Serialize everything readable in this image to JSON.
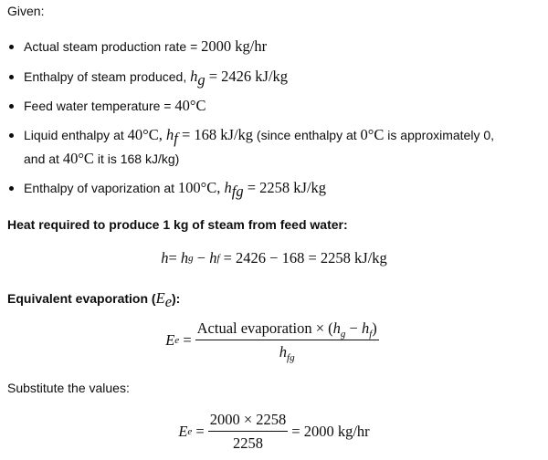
{
  "given_label": "Given:",
  "items": [
    {
      "text": "Actual steam production rate = ",
      "math": "2000 kg/hr"
    },
    {
      "text": "Enthalpy of steam produced, ",
      "var": "h",
      "sub": "g",
      "math": " = 2426 kJ/kg"
    },
    {
      "text": "Feed water temperature = ",
      "math": "40°C"
    },
    {
      "text": "Liquid enthalpy at ",
      "m1": "40°C, ",
      "var": "h",
      "sub": "f",
      "math": " = 168 kJ/kg",
      "rest": " (since enthalpy at ",
      "m2": "0°C",
      "rest2": " is approximately 0,",
      "line2a": "and at ",
      "line2m": "40°C",
      "line2b": " it is 168 kJ/kg)"
    },
    {
      "text": "Enthalpy of vaporization at ",
      "m1": "100°C, ",
      "var": "h",
      "sub": "fg",
      "math": " = 2258 kJ/kg"
    }
  ],
  "heat_heading": "Heat required to produce 1 kg of steam from feed water:",
  "heat_eq": {
    "h": "h",
    "eq1": " = ",
    "hg": "h",
    "g": "g",
    "minus": " − ",
    "hf": "h",
    "f": "f",
    "rest": " = 2426 − 168 = 2258 kJ/kg"
  },
  "ee_heading": "Equivalent evaporation (",
  "ee_heading_var": "E",
  "ee_heading_sub": "e",
  "ee_heading_end": "):",
  "ee_formula": {
    "lhs": "E",
    "lhs_sub": "e",
    "num": "Actual evaporation × (",
    "num_hg": "h",
    "g": "g",
    "num_minus": " − ",
    "num_hf": "h",
    "f": "f",
    "num_end": ")",
    "den": "h",
    "den_sub": "fg"
  },
  "substitute_label": "Substitute the values:",
  "sub_formula": {
    "lhs": "E",
    "lhs_sub": "e",
    "num": "2000 × 2258",
    "den": "2258",
    "result": "= 2000 kg/hr"
  }
}
